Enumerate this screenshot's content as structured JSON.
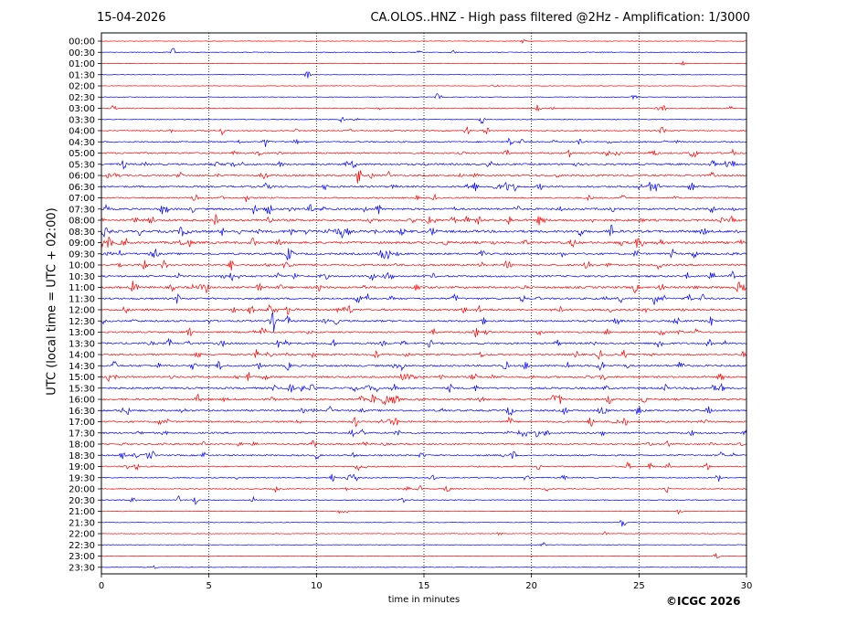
{
  "header": {
    "date": "15-04-2026",
    "title": "CA.OLOS..HNZ - High pass filtered @2Hz - Amplification: 1/3000"
  },
  "footer": {
    "copyright": "©ICGC 2026"
  },
  "chart_data": {
    "type": "line",
    "title": "CA.OLOS..HNZ - High pass filtered @2Hz - Amplification: 1/3000",
    "xlabel": "time in minutes",
    "ylabel": "UTC (local time = UTC + 02:00)",
    "xlim": [
      0,
      30
    ],
    "x_ticks": [
      0,
      5,
      10,
      15,
      20,
      25,
      30
    ],
    "grid": "vertical dotted lines every 5 minutes",
    "series_colors": {
      "even": "#ff0000",
      "odd": "#0000ff"
    },
    "rows": [
      "00:00",
      "00:30",
      "01:00",
      "01:30",
      "02:00",
      "02:30",
      "03:00",
      "03:30",
      "04:00",
      "04:30",
      "05:00",
      "05:30",
      "06:00",
      "06:30",
      "07:00",
      "07:30",
      "08:00",
      "08:30",
      "09:00",
      "09:30",
      "10:00",
      "10:30",
      "11:00",
      "11:30",
      "12:00",
      "12:30",
      "13:00",
      "13:30",
      "14:00",
      "14:30",
      "15:00",
      "15:30",
      "16:00",
      "16:30",
      "17:00",
      "17:30",
      "18:00",
      "18:30",
      "19:00",
      "19:30",
      "20:00",
      "20:30",
      "21:00",
      "21:30",
      "22:00",
      "22:30",
      "23:00",
      "23:30"
    ],
    "activity": [
      0.05,
      0.1,
      0.05,
      0.02,
      0.03,
      0.08,
      0.25,
      0.1,
      0.25,
      0.4,
      0.5,
      0.6,
      0.55,
      0.6,
      0.4,
      0.7,
      0.8,
      0.9,
      0.8,
      0.65,
      0.6,
      0.6,
      0.7,
      0.6,
      0.7,
      0.6,
      0.5,
      0.6,
      0.55,
      0.6,
      0.6,
      0.6,
      0.65,
      0.6,
      0.55,
      0.5,
      0.45,
      0.45,
      0.35,
      0.3,
      0.25,
      0.2,
      0.1,
      0.05,
      0.08,
      0.05,
      0.03,
      0.03
    ]
  }
}
